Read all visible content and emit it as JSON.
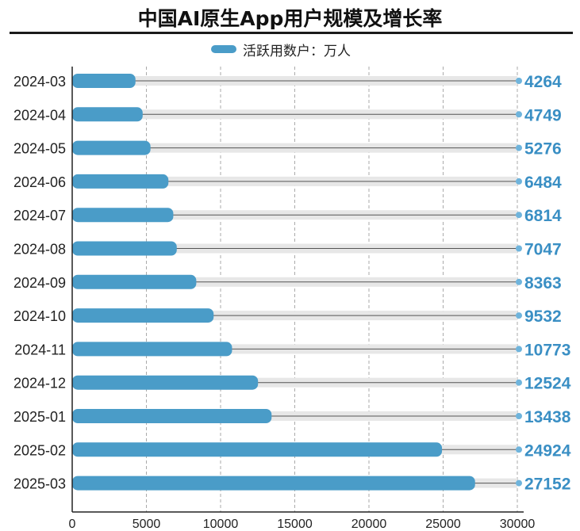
{
  "title": "中国AI原生App用户规模及增长率",
  "colors": {
    "bar": "#4a9cc8",
    "track": "#e7e7e7",
    "value_text": "#3a8fc4",
    "axis": "#222222",
    "grid": "#aaaaaa"
  },
  "chart_data": {
    "type": "bar",
    "orientation": "horizontal",
    "title": "中国AI原生App用户规模及增长率",
    "categories": [
      "2024-03",
      "2024-04",
      "2024-05",
      "2024-06",
      "2024-07",
      "2024-08",
      "2024-09",
      "2024-10",
      "2024-11",
      "2024-12",
      "2025-01",
      "2025-02",
      "2025-03"
    ],
    "series": [
      {
        "name": "活跃用数户：万人",
        "values": [
          4264,
          4749,
          5276,
          6484,
          6814,
          7047,
          8363,
          9532,
          10773,
          12524,
          13438,
          24924,
          27152
        ]
      }
    ],
    "xlim": [
      0,
      30000
    ],
    "xticks": [
      "0",
      "5000",
      "10000",
      "15000",
      "20000",
      "25000",
      "30000"
    ],
    "grid": "vertical-dashed",
    "legend": "top-center",
    "data_labels": "right"
  }
}
